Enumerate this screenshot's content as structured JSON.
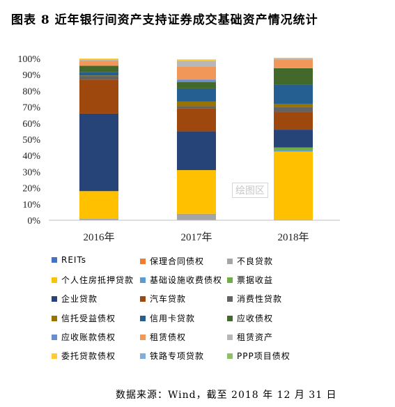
{
  "figure_title": "图表 8  近年银行间资产支持证券成交基础资产情况统计",
  "source_text": "数据来源：Wind，截至 2018 年 12 月 31 日",
  "watermark_text": "绘图区",
  "chart_data": {
    "type": "bar",
    "stacked": true,
    "percent": true,
    "categories": [
      "2016年",
      "2017年",
      "2018年"
    ],
    "ylim": [
      0,
      100
    ],
    "yticks": [
      "0%",
      "10%",
      "20%",
      "30%",
      "40%",
      "50%",
      "60%",
      "70%",
      "80%",
      "90%",
      "100%"
    ],
    "grid": false,
    "legend_position": "bottom",
    "series": [
      {
        "name": "REITs",
        "color": "#4472c4",
        "values": [
          0,
          0,
          0
        ]
      },
      {
        "name": "保理合同债权",
        "color": "#ed7d31",
        "values": [
          0,
          0,
          0
        ]
      },
      {
        "name": "不良贷款",
        "color": "#a5a5a5",
        "values": [
          1,
          4,
          0.5
        ]
      },
      {
        "name": "个人住房抵押贷款",
        "color": "#ffc000",
        "values": [
          17,
          27,
          42
        ]
      },
      {
        "name": "基础设施收费债权",
        "color": "#5b9bd5",
        "values": [
          0,
          0,
          1
        ]
      },
      {
        "name": "票据收益",
        "color": "#70ad47",
        "values": [
          0,
          0,
          1.5
        ]
      },
      {
        "name": "企业贷款",
        "color": "#264478",
        "values": [
          48,
          24,
          11
        ]
      },
      {
        "name": "汽车贷款",
        "color": "#9e480e",
        "values": [
          21,
          14,
          11
        ]
      },
      {
        "name": "消费性贷款",
        "color": "#636363",
        "values": [
          2,
          1.5,
          3
        ]
      },
      {
        "name": "信托受益债权",
        "color": "#997300",
        "values": [
          0.5,
          3,
          2
        ]
      },
      {
        "name": "信用卡贷款",
        "color": "#255e91",
        "values": [
          2,
          8,
          12
        ]
      },
      {
        "name": "应收债权",
        "color": "#43682b",
        "values": [
          4,
          4,
          10
        ]
      },
      {
        "name": "应收账款债权",
        "color": "#698ed0",
        "values": [
          0,
          1.5,
          0
        ]
      },
      {
        "name": "租赁债权",
        "color": "#f1975a",
        "values": [
          3,
          8,
          5.5
        ]
      },
      {
        "name": "租赁资产",
        "color": "#b7b7b7",
        "values": [
          1,
          3.5,
          0.5
        ]
      },
      {
        "name": "委托贷款债权",
        "color": "#ffcd33",
        "values": [
          0.5,
          1,
          0.5
        ]
      },
      {
        "name": "铁路专项贷款",
        "color": "#7cafdd",
        "values": [
          0,
          0,
          0
        ]
      },
      {
        "name": "PPP项目债权",
        "color": "#8cc168",
        "values": [
          0,
          0,
          0
        ]
      }
    ]
  }
}
